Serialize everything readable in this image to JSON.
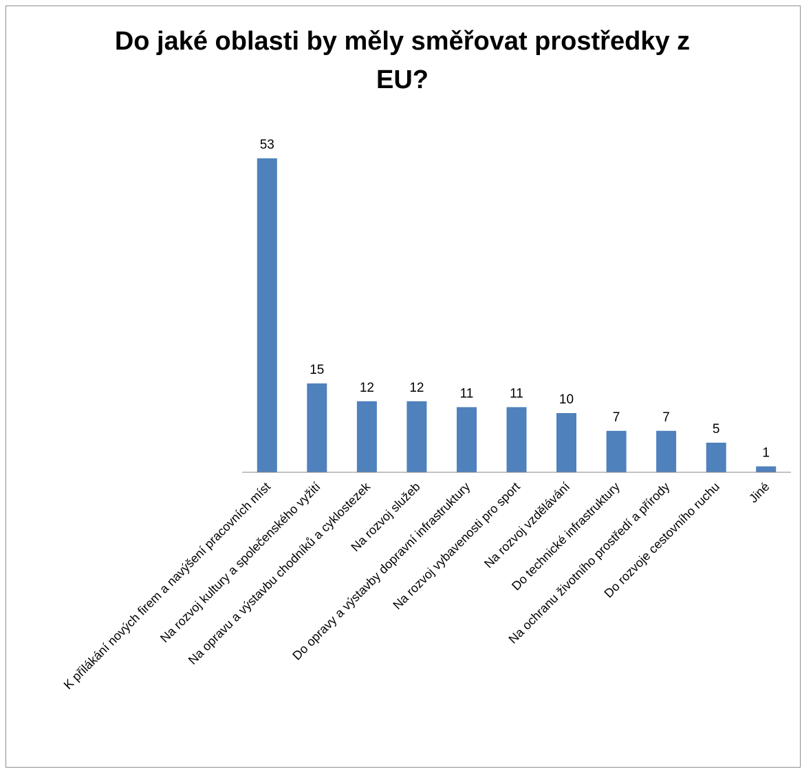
{
  "chart_data": {
    "type": "bar",
    "title": "Do jaké oblasti by měly směřovat prostředky z EU?",
    "categories": [
      "K přilákání nových firem a navýšení pracovních míst",
      "Na rozvoj kultury a společenského vyžití",
      "Na opravu a výstavbu chodníků a cyklostezek",
      "Na rozvoj služeb",
      "Do opravy a výstavby dopravní infrastruktury",
      "Na rozvoj vybavenosti pro sport",
      "Na rozvoj vzdělávání",
      "Do technické infrastruktury",
      "Na ochranu životního prostředí a přírody",
      "Do rozvoje cestovního ruchu",
      "Jiné"
    ],
    "values": [
      53,
      15,
      12,
      12,
      11,
      11,
      10,
      7,
      7,
      5,
      1
    ],
    "data_labels": true,
    "ylim": [
      0,
      55
    ],
    "grid": false,
    "legend": "none",
    "xlabel": "",
    "ylabel": "",
    "bar_color": "#4f81bd",
    "axis_color": "#868686"
  }
}
